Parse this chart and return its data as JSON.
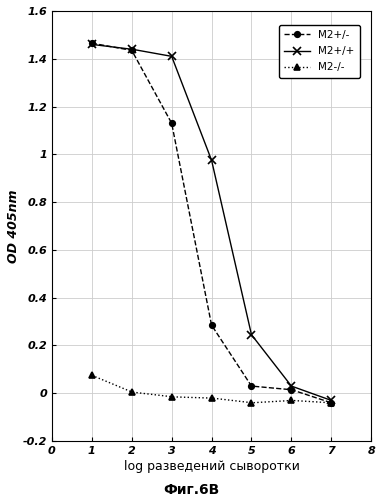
{
  "title": "",
  "xlabel": "log разведений сыворотки",
  "ylabel": "OD 405nm",
  "caption": "Фиг.6В",
  "xlim": [
    0,
    8
  ],
  "ylim": [
    -0.2,
    1.6
  ],
  "xticks": [
    0,
    1,
    2,
    3,
    4,
    5,
    6,
    7,
    8
  ],
  "yticks": [
    -0.2,
    0.0,
    0.2,
    0.4,
    0.6,
    0.8,
    1.0,
    1.2,
    1.4,
    1.6
  ],
  "series": [
    {
      "label": "M2+/-",
      "x": [
        1,
        2,
        3,
        4,
        5,
        6,
        7
      ],
      "y": [
        1.465,
        1.435,
        1.13,
        0.285,
        0.03,
        0.015,
        -0.04
      ],
      "marker": "o",
      "linestyle": "--",
      "color": "#000000",
      "markersize": 4,
      "linewidth": 1.0
    },
    {
      "label": "M2+/+",
      "x": [
        1,
        2,
        3,
        4,
        5,
        6,
        7
      ],
      "y": [
        1.46,
        1.44,
        1.41,
        0.975,
        0.245,
        0.03,
        -0.03
      ],
      "marker": "x",
      "linestyle": "-",
      "color": "#000000",
      "markersize": 6,
      "linewidth": 1.0
    },
    {
      "label": "M2-/-",
      "x": [
        1,
        2,
        3,
        4,
        5,
        6,
        7
      ],
      "y": [
        0.075,
        0.005,
        -0.015,
        -0.02,
        -0.04,
        -0.03,
        -0.04
      ],
      "marker": "^",
      "linestyle": ":",
      "color": "#000000",
      "markersize": 4,
      "linewidth": 1.0
    }
  ],
  "legend_labels": [
    "M2+/-",
    "M2+/+",
    "M2-/-"
  ],
  "background_color": "#ffffff",
  "grid_color": "#cccccc",
  "grid_linewidth": 0.6
}
